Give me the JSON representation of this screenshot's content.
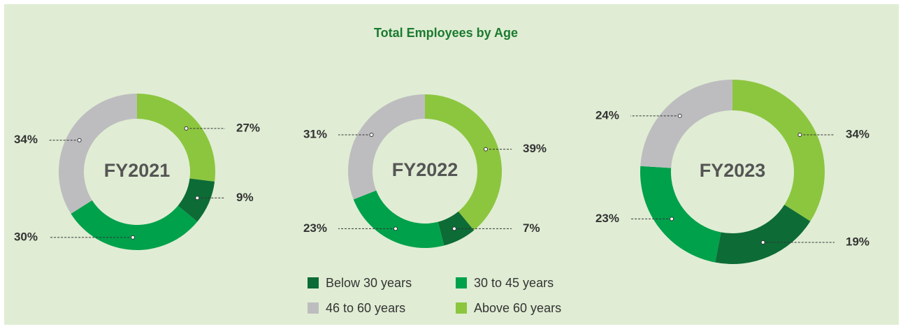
{
  "title": "Total Employees by Age",
  "categories": [
    "Below 30 years",
    "30 to 45 years",
    "46 to 60 years",
    "Above 60 years"
  ],
  "colors": [
    "#0d6b36",
    "#00a14b",
    "#bdbdbf",
    "#8cc63f"
  ],
  "chart_data": [
    {
      "type": "pie",
      "label": "FY2021",
      "values": [
        9,
        30,
        34,
        27
      ],
      "value_labels": [
        "9%",
        "30%",
        "34%",
        "27%"
      ]
    },
    {
      "type": "pie",
      "label": "FY2022",
      "values": [
        7,
        23,
        31,
        39
      ],
      "value_labels": [
        "7%",
        "23%",
        "31%",
        "39%"
      ]
    },
    {
      "type": "pie",
      "label": "FY2023",
      "values": [
        19,
        23,
        24,
        34
      ],
      "value_labels": [
        "19%",
        "23%",
        "24%",
        "34%"
      ]
    }
  ]
}
